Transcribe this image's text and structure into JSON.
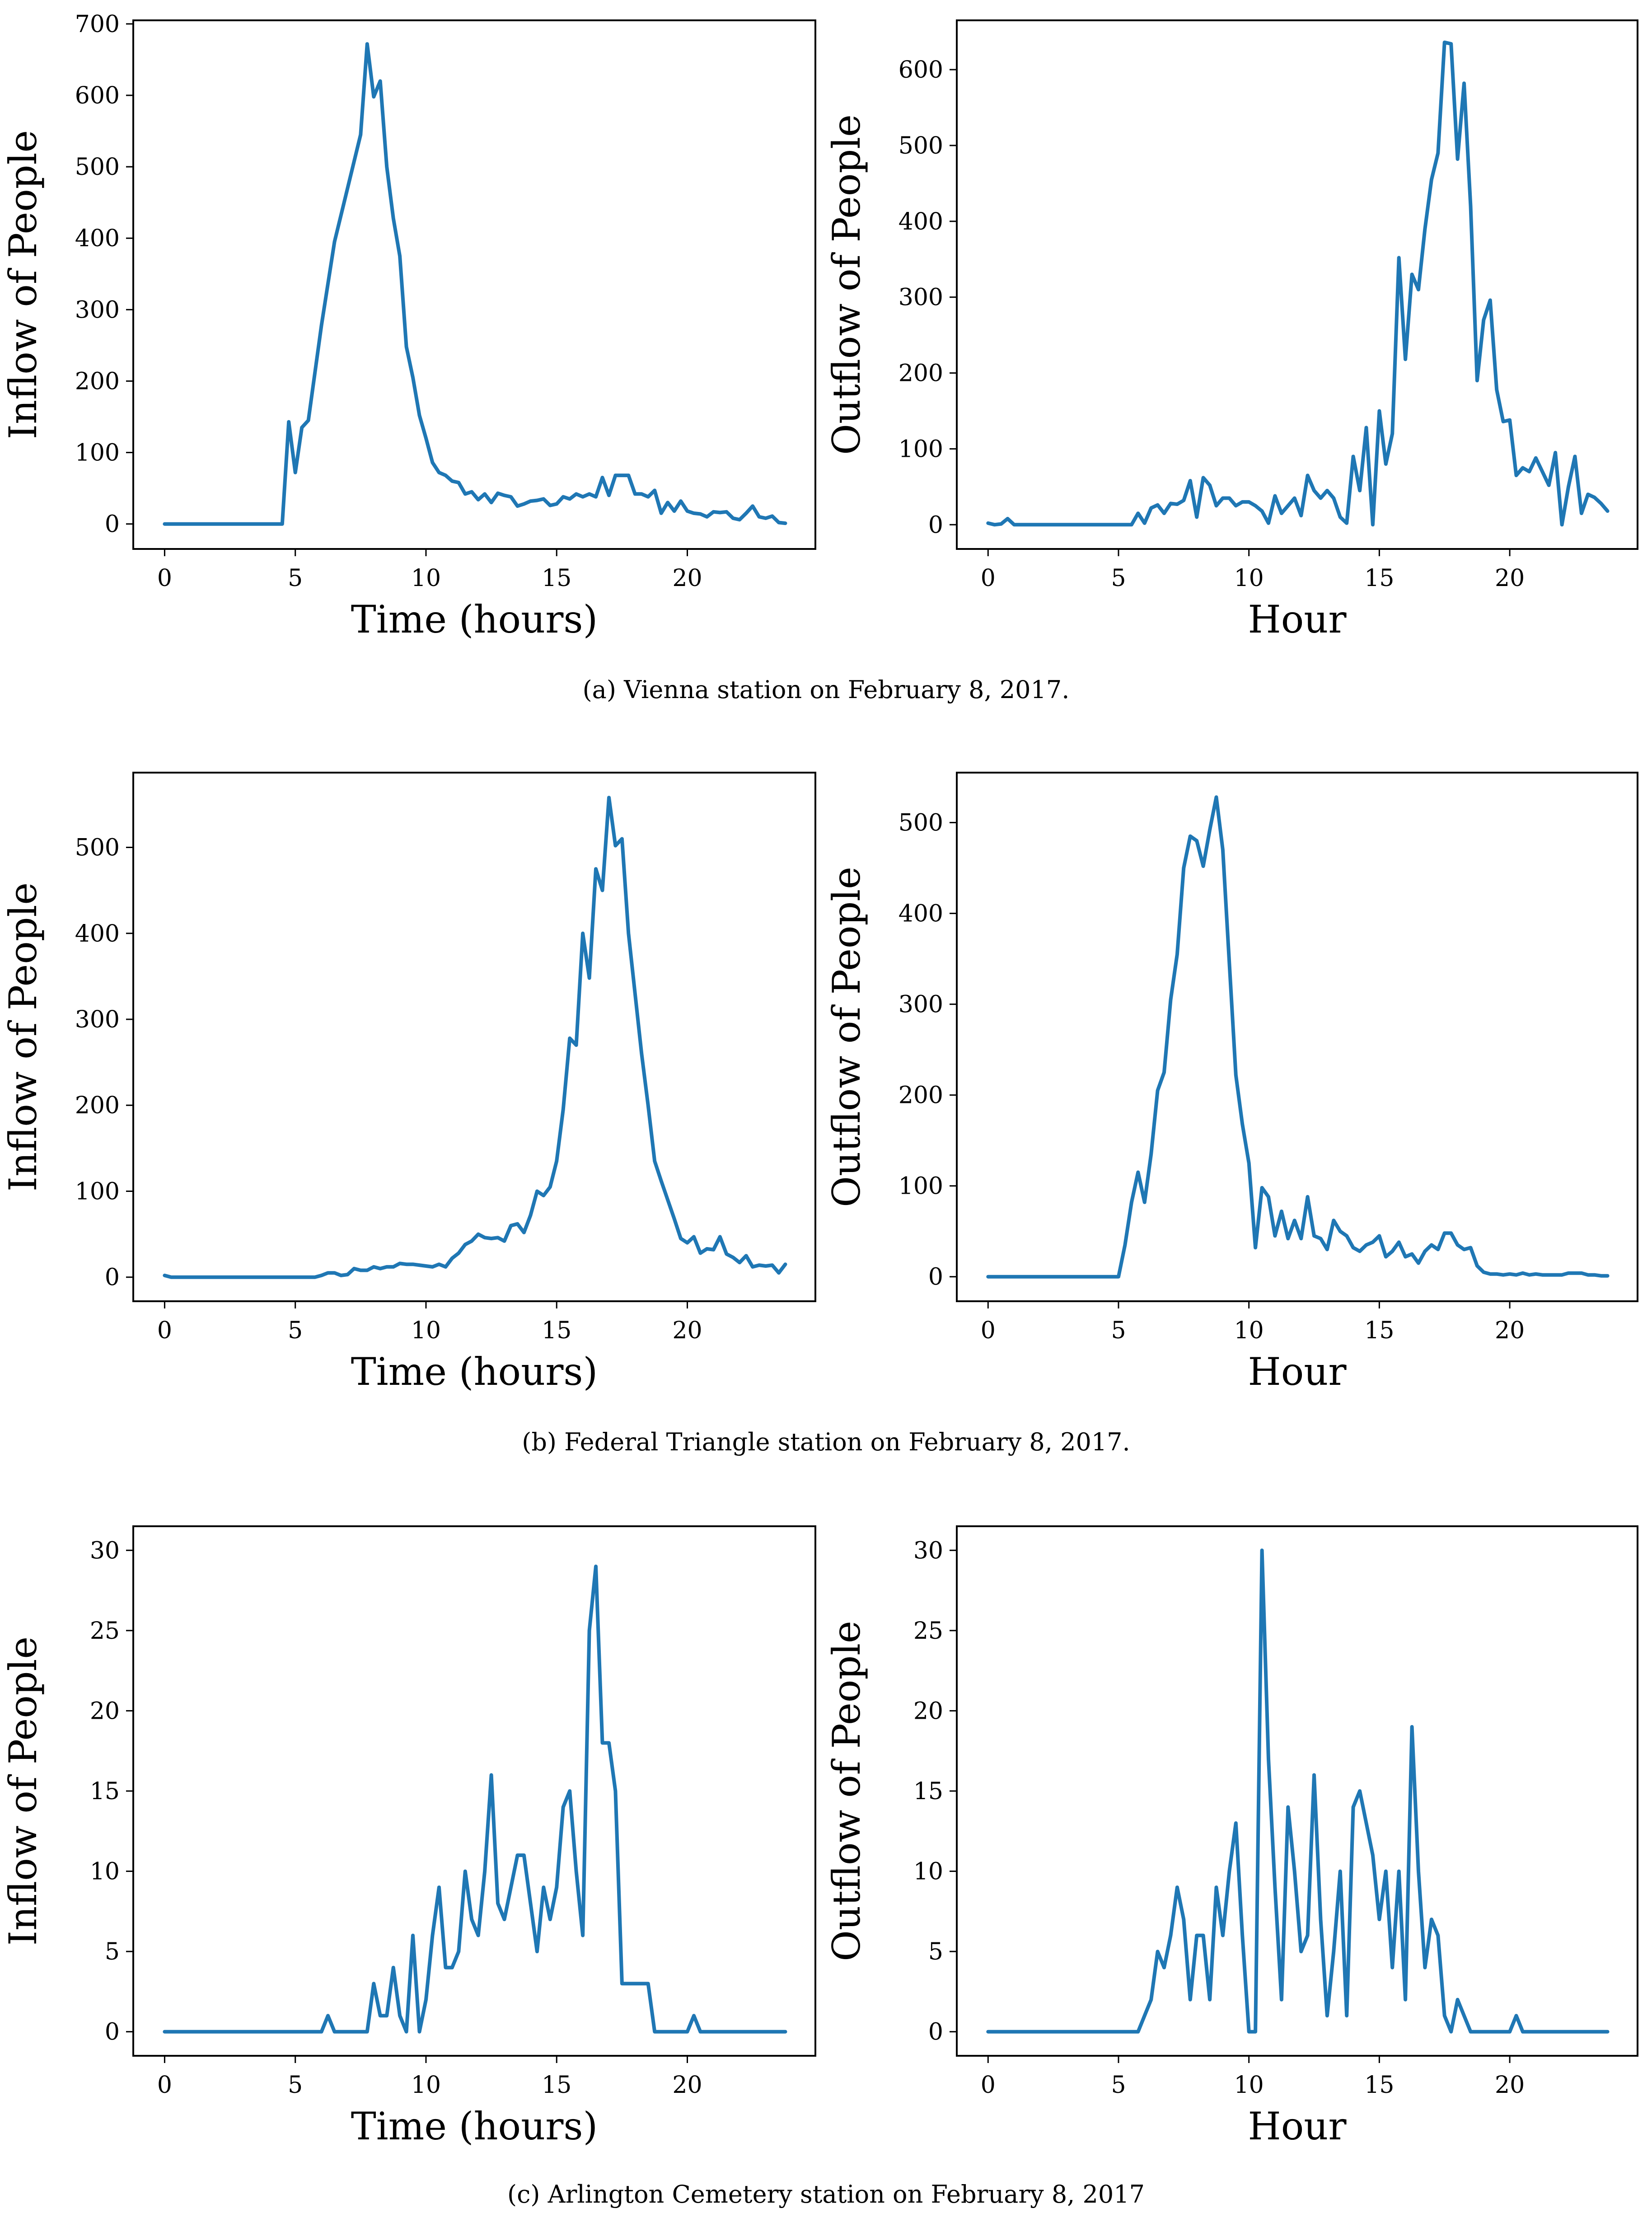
{
  "colors": {
    "line": "#1f77b4",
    "axis": "#000000",
    "background": "#ffffff"
  },
  "captions": [
    "(a)  Vienna station on February 8, 2017.",
    "(b)  Federal Triangle station on February 8, 2017.",
    "(c)  Arlington Cemetery station on February 8, 2017"
  ],
  "chart_data": [
    {
      "type": "line",
      "panel": "a-left",
      "xlabel": "Time (hours)",
      "ylabel": "Inflow of People",
      "xlim": [
        -1.2,
        24.9
      ],
      "ylim": [
        -35,
        705
      ],
      "xticks": [
        0,
        5,
        10,
        15,
        20
      ],
      "yticks": [
        0,
        100,
        200,
        300,
        400,
        500,
        600,
        700
      ],
      "x": [
        0,
        4.5,
        4.75,
        5.0,
        5.25,
        5.5,
        6.0,
        6.5,
        7.0,
        7.5,
        7.75,
        8.0,
        8.25,
        8.5,
        8.75,
        9.0,
        9.25,
        9.5,
        9.75,
        10.0,
        10.25,
        10.5,
        10.75,
        11.0,
        11.25,
        11.5,
        11.75,
        12.0,
        12.25,
        12.5,
        12.75,
        13.0,
        13.25,
        13.5,
        13.75,
        14.0,
        14.25,
        14.5,
        14.75,
        15.0,
        15.25,
        15.5,
        15.75,
        16.0,
        16.25,
        16.5,
        16.75,
        17.0,
        17.25,
        17.5,
        17.75,
        18.0,
        18.25,
        18.5,
        18.75,
        19.0,
        19.25,
        19.5,
        19.75,
        20.0,
        20.25,
        20.5,
        20.75,
        21.0,
        21.25,
        21.5,
        21.75,
        22.0,
        22.25,
        22.5,
        22.75,
        23.0,
        23.25,
        23.5,
        23.75
      ],
      "values": [
        0,
        0,
        143,
        72,
        135,
        145,
        278,
        395,
        470,
        545,
        672,
        598,
        620,
        500,
        428,
        375,
        248,
        205,
        152,
        120,
        86,
        72,
        68,
        60,
        58,
        42,
        45,
        34,
        42,
        30,
        43,
        40,
        38,
        25,
        28,
        32,
        33,
        35,
        26,
        28,
        38,
        35,
        42,
        38,
        42,
        38,
        65,
        40,
        68,
        68,
        68,
        42,
        42,
        38,
        47,
        15,
        30,
        18,
        32,
        18,
        15,
        14,
        10,
        17,
        16,
        17,
        8,
        6,
        15,
        25,
        10,
        8,
        11,
        2,
        1
      ]
    },
    {
      "type": "line",
      "panel": "a-right",
      "xlabel": "Hour",
      "ylabel": "Outflow of People",
      "xlim": [
        -1.2,
        24.9
      ],
      "ylim": [
        -32,
        665
      ],
      "xticks": [
        0,
        5,
        10,
        15,
        20
      ],
      "yticks": [
        0,
        100,
        200,
        300,
        400,
        500,
        600
      ],
      "x": [
        0,
        0.25,
        0.5,
        0.75,
        1.0,
        1.25,
        5.5,
        5.75,
        6.0,
        6.25,
        6.5,
        6.75,
        7.0,
        7.25,
        7.5,
        7.75,
        8.0,
        8.25,
        8.5,
        8.75,
        9.0,
        9.25,
        9.5,
        9.75,
        10.0,
        10.25,
        10.5,
        10.75,
        11.0,
        11.25,
        11.5,
        11.75,
        12.0,
        12.25,
        12.5,
        12.75,
        13.0,
        13.25,
        13.5,
        13.75,
        14.0,
        14.25,
        14.5,
        14.75,
        15.0,
        15.25,
        15.5,
        15.75,
        16.0,
        16.25,
        16.5,
        16.75,
        17.0,
        17.25,
        17.5,
        17.75,
        18.0,
        18.25,
        18.5,
        18.75,
        19.0,
        19.25,
        19.5,
        19.75,
        20.0,
        20.25,
        20.5,
        20.75,
        21.0,
        21.25,
        21.5,
        21.75,
        22.0,
        22.25,
        22.5,
        22.75,
        23.0,
        23.25,
        23.5,
        23.75
      ],
      "values": [
        2,
        0,
        1,
        8,
        0,
        0,
        0,
        15,
        2,
        22,
        26,
        15,
        28,
        27,
        32,
        58,
        10,
        62,
        52,
        25,
        35,
        35,
        25,
        30,
        30,
        25,
        18,
        2,
        38,
        15,
        25,
        35,
        12,
        65,
        45,
        35,
        45,
        35,
        10,
        2,
        90,
        45,
        128,
        0,
        150,
        80,
        120,
        352,
        218,
        330,
        310,
        390,
        455,
        490,
        636,
        634,
        482,
        582,
        420,
        190,
        270,
        296,
        178,
        136,
        138,
        65,
        75,
        70,
        88,
        70,
        52,
        95,
        0,
        50,
        90,
        15,
        40,
        36,
        28,
        18
      ]
    },
    {
      "type": "line",
      "panel": "b-left",
      "xlabel": "Time (hours)",
      "ylabel": "Inflow of People",
      "xlim": [
        -1.2,
        24.9
      ],
      "ylim": [
        -28,
        587
      ],
      "xticks": [
        0,
        5,
        10,
        15,
        20
      ],
      "yticks": [
        0,
        100,
        200,
        300,
        400,
        500
      ],
      "x": [
        0,
        0.25,
        0.5,
        0.75,
        1.0,
        1.25,
        5.75,
        6.0,
        6.25,
        6.5,
        6.75,
        7.0,
        7.25,
        7.5,
        7.75,
        8.0,
        8.25,
        8.5,
        8.75,
        9.0,
        9.25,
        9.5,
        9.75,
        10.0,
        10.25,
        10.5,
        10.75,
        11.0,
        11.25,
        11.5,
        11.75,
        12.0,
        12.25,
        12.5,
        12.75,
        13.0,
        13.25,
        13.5,
        13.75,
        14.0,
        14.25,
        14.5,
        14.75,
        15.0,
        15.25,
        15.5,
        15.75,
        16.0,
        16.25,
        16.5,
        16.75,
        17.0,
        17.25,
        17.5,
        17.75,
        18.0,
        18.25,
        18.5,
        18.75,
        19.0,
        19.25,
        19.5,
        19.75,
        20.0,
        20.25,
        20.5,
        20.75,
        21.0,
        21.25,
        21.5,
        21.75,
        22.0,
        22.25,
        22.5,
        22.75,
        23.0,
        23.25,
        23.5,
        23.75
      ],
      "values": [
        2,
        0,
        0,
        0,
        0,
        0,
        0,
        2,
        5,
        5,
        2,
        3,
        10,
        8,
        8,
        12,
        10,
        12,
        12,
        16,
        15,
        15,
        14,
        13,
        12,
        15,
        12,
        22,
        28,
        38,
        42,
        50,
        46,
        45,
        46,
        42,
        60,
        62,
        52,
        72,
        100,
        95,
        105,
        135,
        195,
        278,
        270,
        400,
        348,
        475,
        450,
        558,
        502,
        510,
        400,
        330,
        260,
        200,
        135,
        112,
        90,
        68,
        45,
        40,
        47,
        28,
        33,
        32,
        47,
        27,
        23,
        17,
        25,
        12,
        14,
        13,
        14,
        5,
        15
      ]
    },
    {
      "type": "line",
      "panel": "b-right",
      "xlabel": "Hour",
      "ylabel": "Outflow of People",
      "xlim": [
        -1.2,
        24.9
      ],
      "ylim": [
        -27,
        555
      ],
      "xticks": [
        0,
        5,
        10,
        15,
        20
      ],
      "yticks": [
        0,
        100,
        200,
        300,
        400,
        500
      ],
      "x": [
        0,
        5.0,
        5.25,
        5.5,
        5.75,
        6.0,
        6.25,
        6.5,
        6.75,
        7.0,
        7.25,
        7.5,
        7.75,
        8.0,
        8.25,
        8.5,
        8.75,
        9.0,
        9.25,
        9.5,
        9.75,
        10.0,
        10.25,
        10.5,
        10.75,
        11.0,
        11.25,
        11.5,
        11.75,
        12.0,
        12.25,
        12.5,
        12.75,
        13.0,
        13.25,
        13.5,
        13.75,
        14.0,
        14.25,
        14.5,
        14.75,
        15.0,
        15.25,
        15.5,
        15.75,
        16.0,
        16.25,
        16.5,
        16.75,
        17.0,
        17.25,
        17.5,
        17.75,
        18.0,
        18.25,
        18.5,
        18.75,
        19.0,
        19.25,
        19.5,
        19.75,
        20.0,
        20.25,
        20.5,
        20.75,
        21.0,
        21.25,
        21.5,
        21.75,
        22.0,
        22.25,
        22.5,
        22.75,
        23.0,
        23.25,
        23.5,
        23.75
      ],
      "values": [
        0,
        0,
        35,
        82,
        115,
        82,
        135,
        205,
        225,
        305,
        355,
        450,
        485,
        480,
        452,
        492,
        528,
        470,
        345,
        222,
        168,
        125,
        32,
        98,
        88,
        45,
        72,
        42,
        62,
        42,
        88,
        45,
        42,
        30,
        62,
        50,
        45,
        32,
        28,
        35,
        38,
        45,
        22,
        28,
        38,
        22,
        25,
        15,
        28,
        35,
        30,
        48,
        48,
        35,
        30,
        32,
        12,
        5,
        3,
        3,
        2,
        3,
        2,
        4,
        2,
        3,
        2,
        2,
        2,
        2,
        4,
        4,
        4,
        2,
        2,
        1,
        1
      ]
    },
    {
      "type": "line",
      "panel": "c-left",
      "xlabel": "Time (hours)",
      "ylabel": "Inflow of People",
      "xlim": [
        -1.2,
        24.9
      ],
      "ylim": [
        -1.5,
        31.5
      ],
      "xticks": [
        0,
        5,
        10,
        15,
        20
      ],
      "yticks": [
        0,
        5,
        10,
        15,
        20,
        25,
        30
      ],
      "x": [
        0,
        6.0,
        6.25,
        6.5,
        7.75,
        8.0,
        8.25,
        8.5,
        8.75,
        9.0,
        9.25,
        9.5,
        9.75,
        10.0,
        10.25,
        10.5,
        10.75,
        11.0,
        11.25,
        11.5,
        11.75,
        12.0,
        12.25,
        12.5,
        12.75,
        13.0,
        13.25,
        13.5,
        13.75,
        14.0,
        14.25,
        14.5,
        14.75,
        15.0,
        15.25,
        15.5,
        15.75,
        16.0,
        16.25,
        16.5,
        16.75,
        17.0,
        17.25,
        17.5,
        17.75,
        18.0,
        18.25,
        18.5,
        18.75,
        20.0,
        20.25,
        20.5,
        23.75
      ],
      "values": [
        0,
        0,
        1,
        0,
        0,
        3,
        1,
        1,
        4,
        1,
        0,
        6,
        0,
        2,
        6,
        9,
        4,
        4,
        5,
        10,
        7,
        6,
        10,
        16,
        8,
        7,
        9,
        11,
        11,
        8,
        5,
        9,
        7,
        9,
        14,
        15,
        10,
        6,
        25,
        29,
        18,
        18,
        15,
        3,
        3,
        3,
        3,
        3,
        0,
        0,
        1,
        0,
        0
      ]
    },
    {
      "type": "line",
      "panel": "c-right",
      "xlabel": "Hour",
      "ylabel": "Outflow of People",
      "xlim": [
        -1.2,
        24.9
      ],
      "ylim": [
        -1.5,
        31.5
      ],
      "xticks": [
        0,
        5,
        10,
        15,
        20
      ],
      "yticks": [
        0,
        5,
        10,
        15,
        20,
        25,
        30
      ],
      "x": [
        0,
        5.75,
        6.0,
        6.25,
        6.5,
        6.75,
        7.0,
        7.25,
        7.5,
        7.75,
        8.0,
        8.25,
        8.5,
        8.75,
        9.0,
        9.25,
        9.5,
        9.75,
        10.0,
        10.25,
        10.5,
        10.75,
        11.0,
        11.25,
        11.5,
        11.75,
        12.0,
        12.25,
        12.5,
        12.75,
        13.0,
        13.25,
        13.5,
        13.75,
        14.0,
        14.25,
        14.5,
        14.75,
        15.0,
        15.25,
        15.5,
        15.75,
        16.0,
        16.25,
        16.5,
        16.75,
        17.0,
        17.25,
        17.5,
        17.75,
        18.0,
        18.25,
        18.5,
        18.75,
        20.0,
        20.25,
        20.5,
        23.75
      ],
      "values": [
        0,
        0,
        1,
        2,
        5,
        4,
        6,
        9,
        7,
        2,
        6,
        6,
        2,
        9,
        6,
        10,
        13,
        6,
        0,
        0,
        30,
        17,
        9,
        2,
        14,
        10,
        5,
        6,
        16,
        7,
        1,
        5,
        10,
        1,
        14,
        15,
        13,
        11,
        7,
        10,
        4,
        10,
        2,
        19,
        10,
        4,
        7,
        6,
        1,
        0,
        2,
        1,
        0,
        0,
        0,
        1,
        0,
        0
      ]
    }
  ]
}
